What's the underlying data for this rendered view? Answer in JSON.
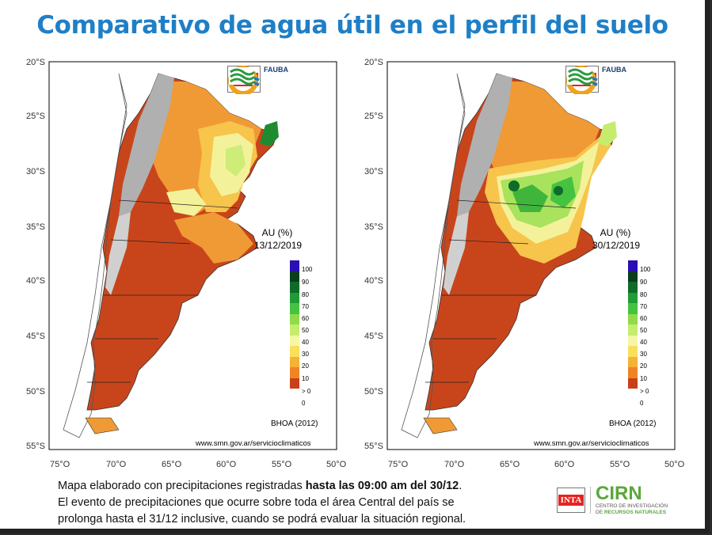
{
  "title": "Comparativo de agua útil en el perfil del suelo",
  "latitudes": [
    "20°S",
    "25°S",
    "30°S",
    "35°S",
    "40°S",
    "45°S",
    "50°S",
    "55°S"
  ],
  "longitudes": [
    "75°O",
    "70°O",
    "65°O",
    "60°O",
    "55°O",
    "50°O"
  ],
  "maps": [
    {
      "legend_title": "AU (%)",
      "date": "13/12/2019",
      "source": "BHOA (2012)",
      "url": "www.smn.gov.ar/servicioclimaticos"
    },
    {
      "legend_title": "AU (%)",
      "date": "30/12/2019",
      "source": "BHOA (2012)",
      "url": "www.smn.gov.ar/servicioclimaticos"
    }
  ],
  "legend": {
    "ticks": [
      "100",
      "90",
      "80",
      "70",
      "60",
      "50",
      "40",
      "30",
      "20",
      "10",
      "> 0",
      "0"
    ],
    "colors": [
      "#2a0fb5",
      "#0b3d1c",
      "#0f6b2a",
      "#1f9c35",
      "#46c241",
      "#8fdb4a",
      "#c6ec6e",
      "#f3f7a6",
      "#fadf5b",
      "#f6b137",
      "#ef8425",
      "#c7401a"
    ]
  },
  "logos": {
    "inta": "INTA",
    "fauba": "FAUBA",
    "cirn": "CIRN",
    "cirn_sub1": "CENTRO DE INVESTIGACIÓN",
    "cirn_sub2_prefix": "DE ",
    "cirn_sub2_bold": "RECURSOS NATURALES"
  },
  "footer": {
    "line1_pre": "Mapa elaborado con precipitaciones registradas ",
    "line1_bold": "hasta las 09:00 am del 30/12",
    "line1_post": ".",
    "line2": "El evento de precipitaciones que ocurre sobre toda el área Central del país se",
    "line3": "prolonga hasta el 31/12 inclusive, cuando se podrá evaluar la situación regional."
  }
}
